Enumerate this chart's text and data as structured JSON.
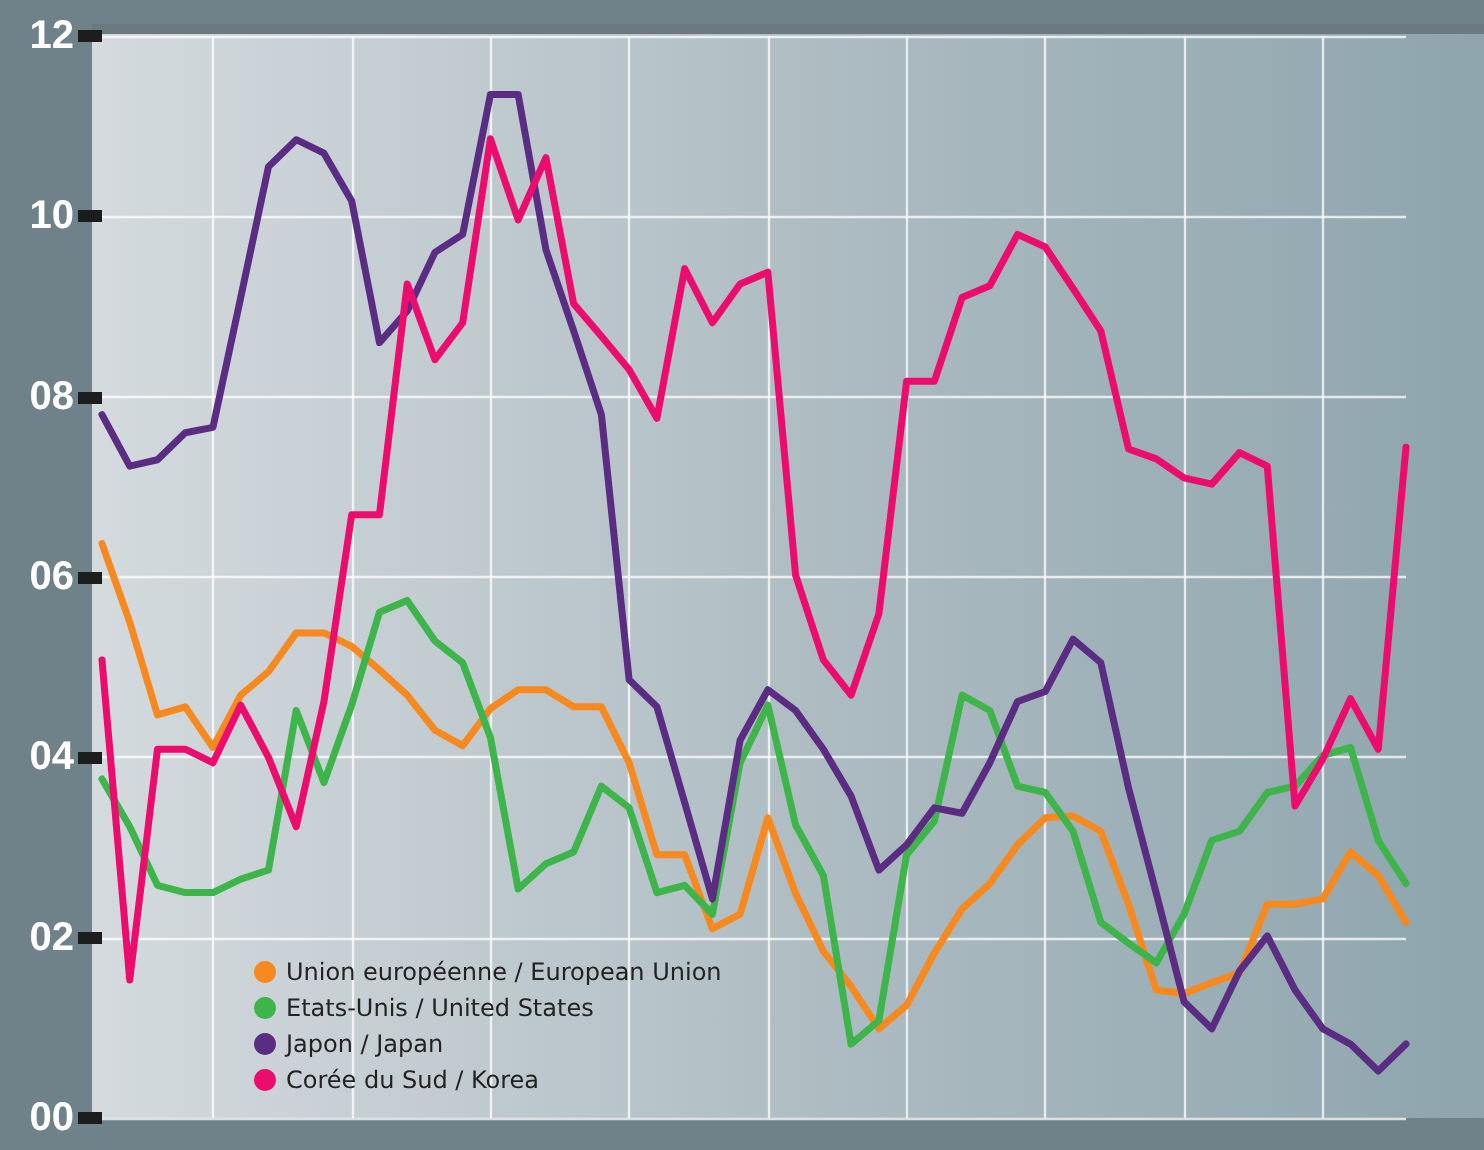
{
  "chart_data": {
    "type": "line",
    "categories": [
      null,
      null,
      null,
      null,
      null,
      null,
      null,
      null,
      null,
      null,
      null,
      null,
      null,
      null,
      null,
      null,
      null,
      null,
      null,
      null,
      null,
      null,
      null,
      null,
      null,
      null,
      null,
      null,
      null,
      null,
      null,
      null,
      null,
      null,
      null,
      null,
      null,
      null,
      null,
      null,
      null,
      null,
      null,
      null,
      null,
      null,
      null,
      null
    ],
    "series": [
      {
        "name": "Union européenne / European Union",
        "color": "#f7891e",
        "values": [
          6.37,
          5.5,
          4.47,
          4.56,
          4.11,
          4.69,
          4.95,
          5.38,
          5.38,
          5.23,
          4.97,
          4.69,
          4.3,
          4.13,
          4.54,
          4.75,
          4.75,
          4.56,
          4.56,
          3.94,
          2.92,
          2.92,
          2.1,
          2.26,
          3.33,
          2.49,
          1.85,
          1.46,
          0.99,
          1.25,
          1.83,
          2.32,
          2.6,
          3.03,
          3.33,
          3.35,
          3.18,
          2.37,
          1.42,
          1.38,
          1.5,
          1.61,
          2.37,
          2.37,
          2.43,
          2.95,
          2.69,
          2.17
        ]
      },
      {
        "name": "Etats-Unis / United States",
        "color": "#3db54a",
        "values": [
          3.76,
          3.23,
          2.58,
          2.5,
          2.5,
          2.65,
          2.75,
          4.52,
          3.72,
          4.58,
          5.61,
          5.74,
          5.29,
          5.05,
          4.22,
          2.54,
          2.82,
          2.95,
          3.68,
          3.44,
          2.5,
          2.58,
          2.26,
          3.94,
          4.58,
          3.25,
          2.69,
          0.82,
          1.08,
          2.92,
          3.29,
          4.69,
          4.52,
          3.68,
          3.61,
          3.18,
          2.17,
          1.94,
          1.72,
          2.26,
          3.08,
          3.18,
          3.61,
          3.68,
          4.02,
          4.11,
          3.08,
          2.6
        ]
      },
      {
        "name": "Japon / Japan",
        "color": "#5b2d82",
        "values": [
          7.8,
          7.23,
          7.3,
          7.6,
          7.66,
          9.1,
          10.55,
          10.85,
          10.7,
          10.17,
          8.6,
          8.95,
          9.6,
          9.8,
          11.35,
          11.35,
          9.63,
          8.73,
          7.8,
          4.86,
          4.56,
          3.5,
          2.43,
          4.19,
          4.75,
          4.52,
          4.09,
          3.57,
          2.75,
          3.03,
          3.44,
          3.38,
          3.94,
          4.62,
          4.73,
          5.31,
          5.05,
          3.66,
          2.49,
          1.29,
          0.99,
          1.63,
          2.02,
          1.42,
          0.99,
          0.82,
          0.52,
          0.82
        ]
      },
      {
        "name": "Corée du Sud / Korea",
        "color": "#ec0c6e",
        "values": [
          5.08,
          1.53,
          4.09,
          4.09,
          3.94,
          4.58,
          4.0,
          3.23,
          4.62,
          6.69,
          6.69,
          9.25,
          8.41,
          8.82,
          10.86,
          9.96,
          10.65,
          9.03,
          8.67,
          8.3,
          7.76,
          9.42,
          8.82,
          9.25,
          9.38,
          6.02,
          5.08,
          4.69,
          5.59,
          8.17,
          8.17,
          9.1,
          9.23,
          9.8,
          9.66,
          9.2,
          8.73,
          7.42,
          7.31,
          7.1,
          7.03,
          7.38,
          7.23,
          3.46,
          3.98,
          4.65,
          4.09,
          7.44
        ]
      }
    ],
    "ylim": [
      0,
      12
    ],
    "yticks": [
      {
        "value": 0,
        "label": "00"
      },
      {
        "value": 2,
        "label": "02"
      },
      {
        "value": 4,
        "label": "04"
      },
      {
        "value": 6,
        "label": "06"
      },
      {
        "value": 8,
        "label": "08"
      },
      {
        "value": 10,
        "label": "10"
      },
      {
        "value": 12,
        "label": "12"
      }
    ],
    "tick_labels": "y",
    "grid": true,
    "legend": "bottom left",
    "marker": "none",
    "line_style": "solid"
  }
}
